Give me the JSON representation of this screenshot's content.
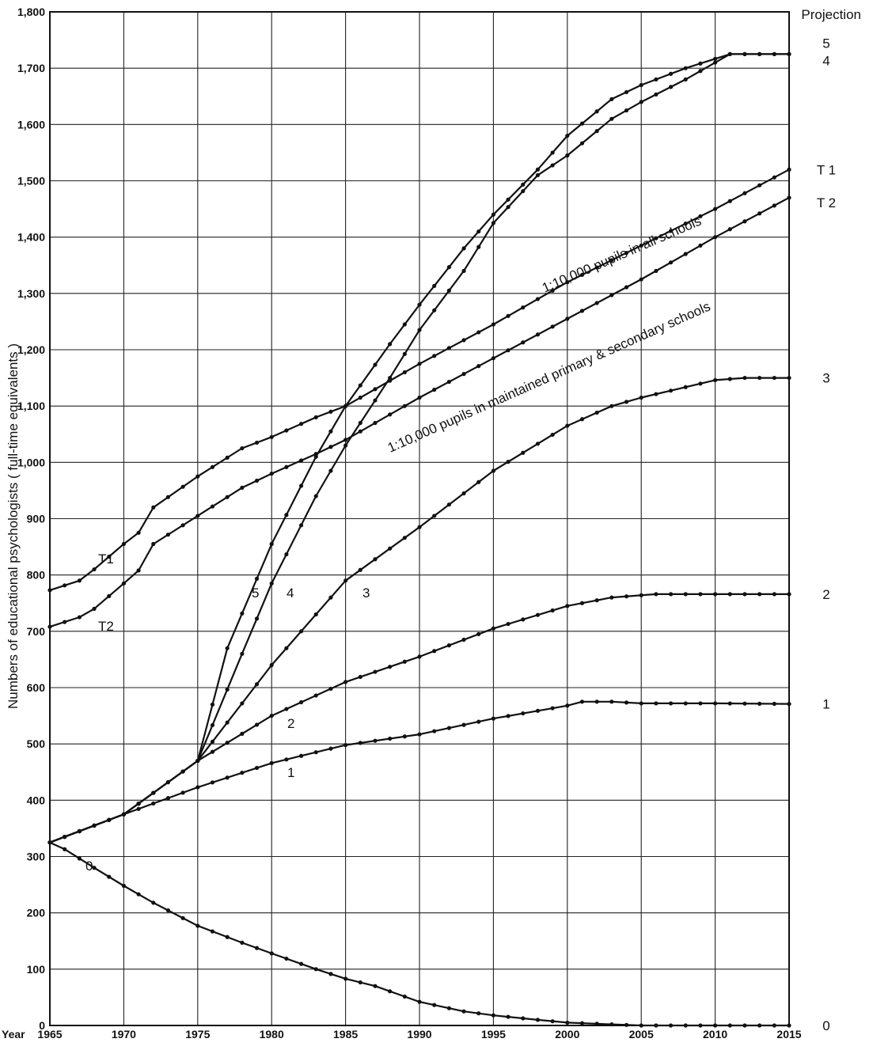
{
  "chart_data": {
    "type": "line",
    "ylabel": "Numbers of educational psychologists ( full-time equivalents )",
    "x_axis_name": "Year",
    "right_header": "Projection",
    "xlim": [
      1965,
      2015
    ],
    "ylim": [
      0,
      1800
    ],
    "grid": true,
    "x_ticks": [
      "1965",
      "1970",
      "1975",
      "1980",
      "1985",
      "1990",
      "1995",
      "2000",
      "2005",
      "2010",
      "2015"
    ],
    "y_ticks": [
      "0",
      "100",
      "200",
      "300",
      "400",
      "500",
      "600",
      "700",
      "800",
      "900",
      "1,000",
      "1,100",
      "1,200",
      "1,300",
      "1,400",
      "1,500",
      "1,600",
      "1,700",
      "1,800"
    ],
    "annotations": [
      "1:10,000 pupils in all schools",
      "1:10,000 pupils in maintained primary & secondary schools"
    ],
    "series": [
      {
        "name": "0",
        "label": "0",
        "end_label": "0",
        "markers": true,
        "x": [
          1965,
          1966,
          1968,
          1970,
          1972,
          1975,
          1978,
          1980,
          1983,
          1985,
          1987,
          1990,
          1993,
          1995,
          1998,
          2000,
          2003,
          2005,
          2010,
          2015
        ],
        "y": [
          325,
          313,
          280,
          248,
          218,
          177,
          147,
          128,
          100,
          83,
          70,
          42,
          25,
          18,
          10,
          5,
          2,
          0,
          0,
          0
        ]
      },
      {
        "name": "1",
        "label": "1",
        "end_label": "1",
        "markers": true,
        "x": [
          1965,
          1970,
          1975,
          1980,
          1985,
          1990,
          1995,
          2000,
          2001,
          2003,
          2005,
          2010,
          2015
        ],
        "y": [
          325,
          375,
          423,
          466,
          498,
          517,
          545,
          568,
          575,
          575,
          572,
          572,
          571
        ]
      },
      {
        "name": "2",
        "label": "2",
        "end_label": "2",
        "markers": true,
        "x": [
          1965,
          1970,
          1975,
          1980,
          1985,
          1990,
          1995,
          2000,
          2003,
          2006,
          2010,
          2015
        ],
        "y": [
          325,
          375,
          470,
          550,
          610,
          655,
          705,
          745,
          760,
          766,
          766,
          766
        ]
      },
      {
        "name": "3",
        "label": "3",
        "end_label": "3",
        "markers": true,
        "x": [
          1965,
          1970,
          1975,
          1980,
          1985,
          1990,
          1995,
          2000,
          2003,
          2005,
          2010,
          2012,
          2015
        ],
        "y": [
          325,
          375,
          470,
          640,
          790,
          885,
          985,
          1065,
          1100,
          1115,
          1146,
          1150,
          1150
        ]
      },
      {
        "name": "4",
        "label": "4",
        "end_label": "4",
        "markers": true,
        "x": [
          1965,
          1970,
          1975,
          1978,
          1980,
          1983,
          1985,
          1988,
          1990,
          1993,
          1995,
          1998,
          2000,
          2003,
          2005,
          2008,
          2011,
          2015
        ],
        "y": [
          325,
          375,
          470,
          660,
          785,
          940,
          1030,
          1150,
          1235,
          1340,
          1425,
          1510,
          1545,
          1610,
          1640,
          1680,
          1725,
          1725
        ]
      },
      {
        "name": "5",
        "label": "5",
        "end_label": "5",
        "markers": true,
        "x": [
          1965,
          1970,
          1975,
          1977,
          1980,
          1983,
          1985,
          1988,
          1990,
          1993,
          1995,
          1998,
          2000,
          2003,
          2005,
          2008,
          2011,
          2015
        ],
        "y": [
          325,
          375,
          470,
          670,
          855,
          1010,
          1100,
          1210,
          1280,
          1380,
          1440,
          1520,
          1580,
          1645,
          1670,
          1700,
          1725,
          1725
        ]
      },
      {
        "name": "T1",
        "label": "T1",
        "end_label": "T 1",
        "markers": true,
        "x": [
          1965,
          1967,
          1968,
          1970,
          1971,
          1972,
          1975,
          1978,
          1980,
          1983,
          1985,
          1990,
          1995,
          2000,
          2005,
          2010,
          2015
        ],
        "y": [
          773,
          790,
          810,
          855,
          875,
          920,
          975,
          1025,
          1045,
          1080,
          1100,
          1175,
          1245,
          1320,
          1385,
          1450,
          1520
        ]
      },
      {
        "name": "T2",
        "label": "T2",
        "end_label": "T 2",
        "markers": true,
        "x": [
          1965,
          1967,
          1968,
          1970,
          1971,
          1972,
          1975,
          1978,
          1980,
          1983,
          1985,
          1990,
          1995,
          2000,
          2005,
          2010,
          2015
        ],
        "y": [
          708,
          725,
          740,
          785,
          808,
          855,
          905,
          955,
          980,
          1015,
          1040,
          1115,
          1185,
          1255,
          1325,
          1400,
          1470
        ]
      }
    ]
  }
}
